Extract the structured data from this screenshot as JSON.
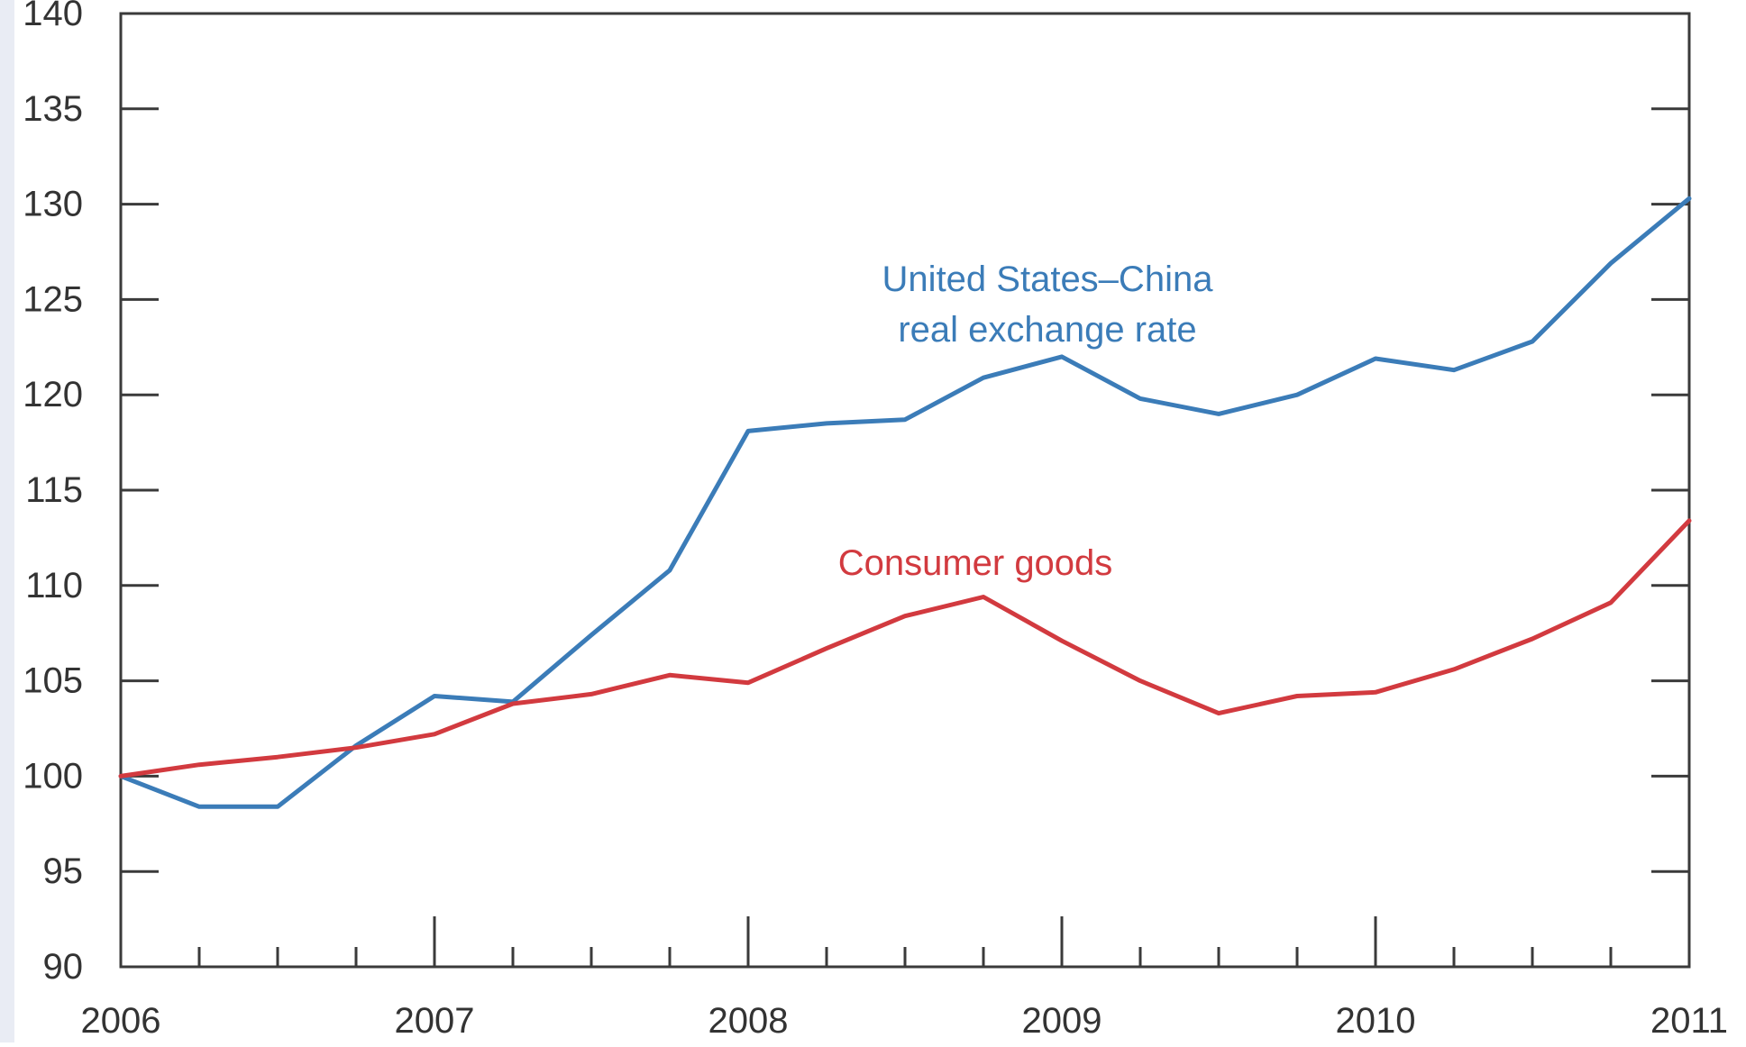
{
  "chart_data": {
    "type": "line",
    "title": "",
    "xlabel": "",
    "ylabel": "",
    "ylim": [
      90,
      140
    ],
    "xlim": [
      2006,
      2011
    ],
    "y_ticks": [
      90,
      95,
      100,
      105,
      110,
      115,
      120,
      125,
      130,
      135,
      140
    ],
    "x_ticks": [
      2006,
      2007,
      2008,
      2009,
      2010,
      2011
    ],
    "x_tick_labels": [
      "2006",
      "2007",
      "2008",
      "2009",
      "2010",
      "2011"
    ],
    "grid": false,
    "x": [
      2006.0,
      2006.25,
      2006.5,
      2006.75,
      2007.0,
      2007.25,
      2007.5,
      2007.75,
      2008.0,
      2008.25,
      2008.5,
      2008.75,
      2009.0,
      2009.25,
      2009.5,
      2009.75,
      2010.0,
      2010.25,
      2010.5,
      2010.75,
      2011.0
    ],
    "series": [
      {
        "name": "United States–China real exchange rate",
        "color": "#3b7cb8",
        "values": [
          100.0,
          98.4,
          98.4,
          101.6,
          104.2,
          103.9,
          107.4,
          110.8,
          118.1,
          118.5,
          118.7,
          120.9,
          122.0,
          119.8,
          119.0,
          120.0,
          121.9,
          121.3,
          122.8,
          126.9,
          130.3
        ]
      },
      {
        "name": "Consumer goods",
        "color": "#d23a3f",
        "values": [
          100.0,
          100.6,
          101.0,
          101.5,
          102.2,
          103.8,
          104.3,
          105.3,
          104.9,
          106.7,
          108.4,
          109.4,
          107.1,
          105.0,
          103.3,
          104.2,
          104.4,
          105.6,
          107.2,
          109.1,
          113.4
        ]
      }
    ],
    "annotations": [
      {
        "series": 0,
        "lines": [
          "United States–China",
          "real exchange rate"
        ]
      },
      {
        "series": 1,
        "lines": [
          "Consumer goods"
        ]
      }
    ]
  }
}
